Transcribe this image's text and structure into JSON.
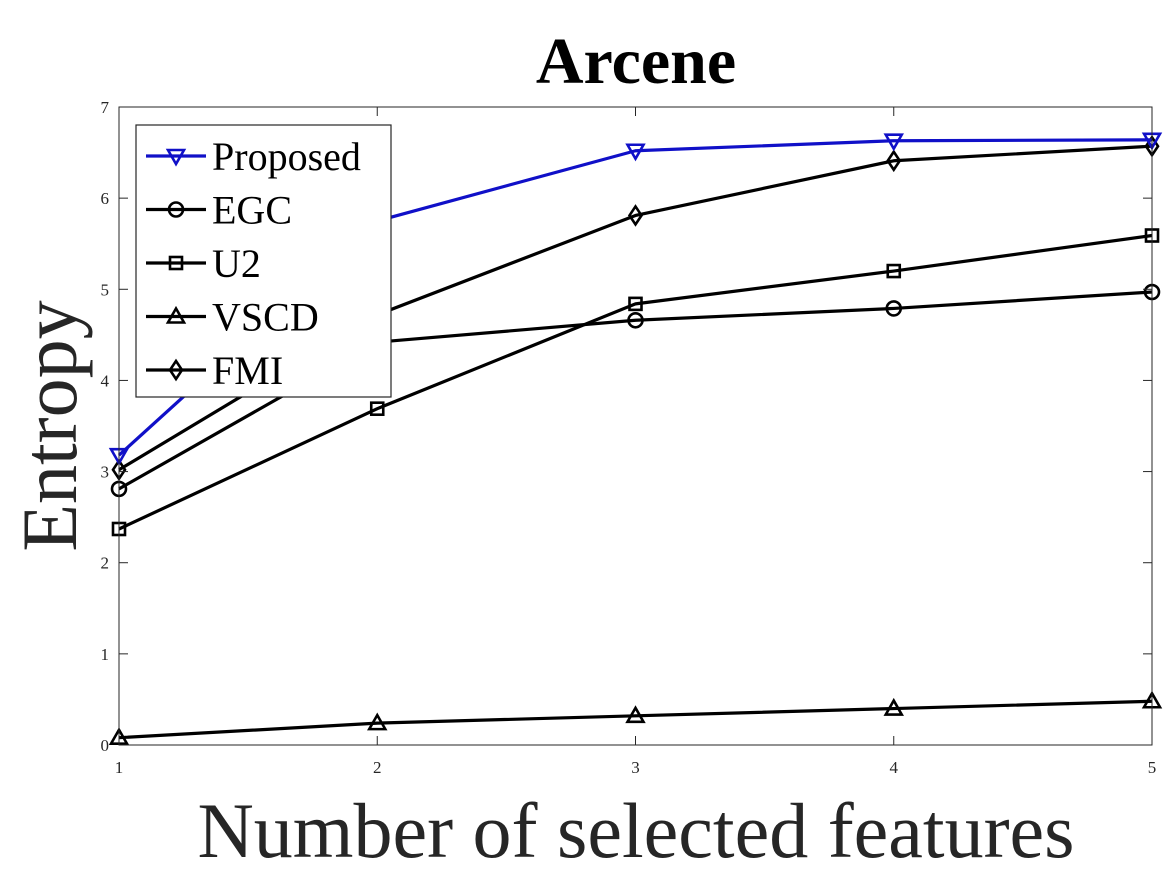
{
  "chart_data": {
    "type": "line",
    "title": "Arcene",
    "xlabel": "Number of selected features",
    "ylabel": "Entropy",
    "x": [
      1,
      2,
      3,
      4,
      5
    ],
    "xlim": [
      1,
      5
    ],
    "ylim": [
      0,
      7
    ],
    "xticks": [
      "1",
      "2",
      "3",
      "4",
      "5"
    ],
    "yticks": [
      "0",
      "1",
      "2",
      "3",
      "4",
      "5",
      "6",
      "7"
    ],
    "grid": false,
    "legend_position": "top-left",
    "series": [
      {
        "name": "Proposed",
        "values": [
          3.18,
          5.75,
          6.52,
          6.63,
          6.64
        ],
        "color": "#1010c8",
        "marker": "triangle-down"
      },
      {
        "name": "EGC",
        "values": [
          2.81,
          4.42,
          4.66,
          4.79,
          4.97
        ],
        "color": "#000000",
        "marker": "circle"
      },
      {
        "name": "U2",
        "values": [
          2.37,
          3.69,
          4.84,
          5.2,
          5.59
        ],
        "color": "#000000",
        "marker": "square"
      },
      {
        "name": "VSCD",
        "values": [
          0.08,
          0.24,
          0.32,
          0.4,
          0.48
        ],
        "color": "#000000",
        "marker": "triangle-up"
      },
      {
        "name": "FMI",
        "values": [
          3.02,
          4.72,
          5.81,
          6.41,
          6.57
        ],
        "color": "#000000",
        "marker": "diamond"
      }
    ]
  }
}
